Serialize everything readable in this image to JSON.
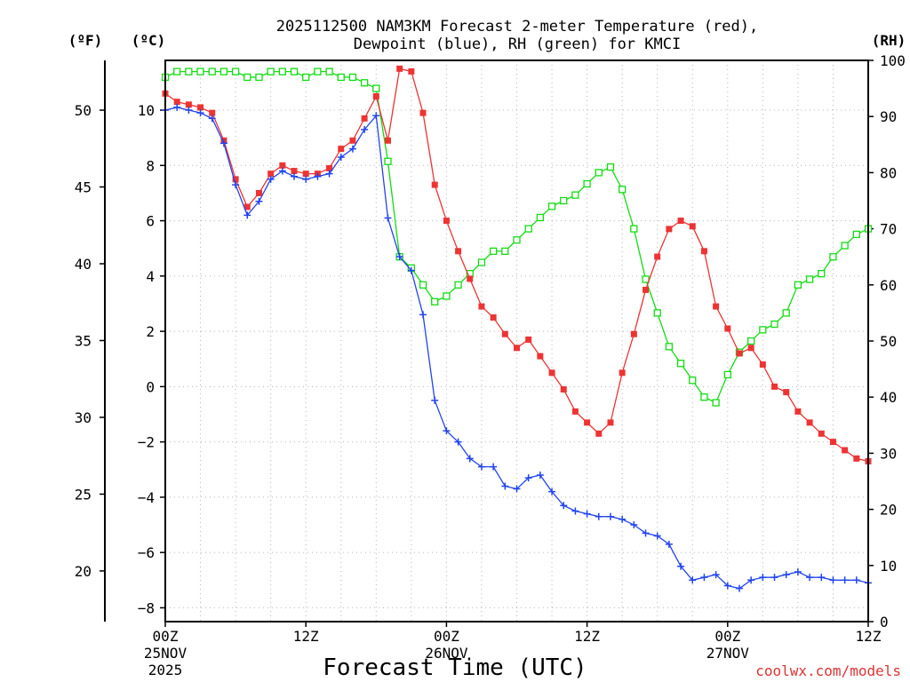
{
  "colors": {
    "temperature": "#ee3333",
    "dewpoint": "#2244ee",
    "rh": "#11dd11",
    "credit": "#dd3333",
    "grid": "#b5b5b5"
  },
  "chart_data": {
    "type": "line",
    "title": [
      "2025112500 NAM3KM Forecast 2-meter Temperature (red),",
      "Dewpoint (blue), RH (green) for KMCI"
    ],
    "xlabel": "Forecast Time (UTC)",
    "credit": "coolwx.com/models",
    "units": {
      "left_f": "(ºF)",
      "left_c": "(ºC)",
      "right": "(RH)"
    },
    "x_unit": "forecast hour",
    "xlim": [
      0,
      60
    ],
    "x_ticks": [
      {
        "hour": 0,
        "lines": [
          "00Z",
          "25NOV",
          "2025"
        ]
      },
      {
        "hour": 12,
        "lines": [
          "12Z"
        ]
      },
      {
        "hour": 24,
        "lines": [
          "00Z",
          "26NOV"
        ]
      },
      {
        "hour": 36,
        "lines": [
          "12Z"
        ]
      },
      {
        "hour": 48,
        "lines": [
          "00Z",
          "27NOV"
        ]
      },
      {
        "hour": 60,
        "lines": [
          "12Z"
        ]
      }
    ],
    "y_left_c": {
      "label": "(ºC)",
      "ylim": [
        -8.5,
        11.8
      ],
      "ticks": [
        10,
        8,
        6,
        4,
        2,
        0,
        -2,
        -4,
        -6,
        -8
      ],
      "tick_labels": [
        "10",
        "8",
        "6",
        "4",
        "2",
        "0",
        "−2",
        "−4",
        "−6",
        "−8"
      ]
    },
    "y_left_f": {
      "label": "(ºF)",
      "ticks": [
        50,
        45,
        40,
        35,
        30,
        25,
        20
      ],
      "tick_labels": [
        "50",
        "45",
        "40",
        "35",
        "30",
        "25",
        "20"
      ]
    },
    "y_right_rh": {
      "label": "(RH)",
      "ylim": [
        0,
        100
      ],
      "ticks": [
        100,
        90,
        80,
        70,
        60,
        50,
        40,
        30,
        20,
        10,
        0
      ],
      "tick_labels": [
        "100",
        "90",
        "80",
        "70",
        "60",
        "50",
        "40",
        "30",
        "20",
        "10",
        "0"
      ]
    },
    "series": [
      {
        "name": "2-meter Temperature",
        "axis": "celsius",
        "color": "red",
        "marker": "filled-square",
        "x": [
          0,
          1,
          2,
          3,
          4,
          5,
          6,
          7,
          8,
          9,
          10,
          11,
          12,
          13,
          14,
          15,
          16,
          17,
          18,
          19,
          20,
          21,
          22,
          23,
          24,
          25,
          26,
          27,
          28,
          29,
          30,
          31,
          32,
          33,
          34,
          35,
          36,
          37,
          38,
          39,
          40,
          41,
          42,
          43,
          44,
          45,
          46,
          47,
          48,
          49,
          50,
          51,
          52,
          53,
          54,
          55,
          56,
          57,
          58,
          59,
          60
        ],
        "values": [
          10.6,
          10.3,
          10.2,
          10.1,
          9.9,
          8.9,
          7.5,
          6.5,
          7.0,
          7.7,
          8.0,
          7.8,
          7.7,
          7.7,
          7.9,
          8.6,
          8.9,
          9.7,
          10.5,
          8.9,
          11.5,
          11.4,
          9.9,
          7.3,
          6.0,
          4.9,
          3.9,
          2.9,
          2.5,
          1.9,
          1.4,
          1.7,
          1.1,
          0.5,
          -0.1,
          -0.9,
          -1.3,
          -1.7,
          -1.3,
          0.5,
          1.9,
          3.5,
          4.7,
          5.7,
          6.0,
          5.8,
          4.9,
          2.9,
          2.1,
          1.2,
          1.4,
          0.8,
          0.0,
          -0.2,
          -0.9,
          -1.3,
          -1.7,
          -2.0,
          -2.3,
          -2.6,
          -2.7
        ]
      },
      {
        "name": "Dewpoint",
        "axis": "celsius",
        "color": "blue",
        "marker": "plus",
        "x": [
          0,
          1,
          2,
          3,
          4,
          5,
          6,
          7,
          8,
          9,
          10,
          11,
          12,
          13,
          14,
          15,
          16,
          17,
          18,
          19,
          20,
          21,
          22,
          23,
          24,
          25,
          26,
          27,
          28,
          29,
          30,
          31,
          32,
          33,
          34,
          35,
          36,
          37,
          38,
          39,
          40,
          41,
          42,
          43,
          44,
          45,
          46,
          47,
          48,
          49,
          50,
          51,
          52,
          53,
          54,
          55,
          56,
          57,
          58,
          59,
          60
        ],
        "values": [
          10.0,
          10.1,
          10.0,
          9.9,
          9.7,
          8.8,
          7.3,
          6.2,
          6.7,
          7.5,
          7.8,
          7.6,
          7.5,
          7.6,
          7.7,
          8.3,
          8.6,
          9.3,
          9.8,
          6.1,
          4.7,
          4.2,
          2.6,
          -0.5,
          -1.6,
          -2.0,
          -2.6,
          -2.9,
          -2.9,
          -3.6,
          -3.7,
          -3.3,
          -3.2,
          -3.8,
          -4.3,
          -4.5,
          -4.6,
          -4.7,
          -4.7,
          -4.8,
          -5.0,
          -5.3,
          -5.4,
          -5.7,
          -6.5,
          -7.0,
          -6.9,
          -6.8,
          -7.2,
          -7.3,
          -7.0,
          -6.9,
          -6.9,
          -6.8,
          -6.7,
          -6.9,
          -6.9,
          -7.0,
          -7.0,
          -7.0,
          -7.1
        ]
      },
      {
        "name": "Relative Humidity",
        "axis": "rh",
        "color": "green",
        "marker": "open-square",
        "x": [
          0,
          1,
          2,
          3,
          4,
          5,
          6,
          7,
          8,
          9,
          10,
          11,
          12,
          13,
          14,
          15,
          16,
          17,
          18,
          19,
          20,
          21,
          22,
          23,
          24,
          25,
          26,
          27,
          28,
          29,
          30,
          31,
          32,
          33,
          34,
          35,
          36,
          37,
          38,
          39,
          40,
          41,
          42,
          43,
          44,
          45,
          46,
          47,
          48,
          49,
          50,
          51,
          52,
          53,
          54,
          55,
          56,
          57,
          58,
          59,
          60
        ],
        "values": [
          97,
          98,
          98,
          98,
          98,
          98,
          98,
          97,
          97,
          98,
          98,
          98,
          97,
          98,
          98,
          97,
          97,
          96,
          95,
          82,
          65,
          63,
          60,
          57,
          58,
          60,
          62,
          64,
          66,
          66,
          68,
          70,
          72,
          74,
          75,
          76,
          78,
          80,
          81,
          77,
          70,
          61,
          55,
          49,
          46,
          43,
          40,
          39,
          44,
          48,
          50,
          52,
          53,
          55,
          60,
          61,
          62,
          65,
          67,
          69,
          70
        ]
      }
    ]
  }
}
